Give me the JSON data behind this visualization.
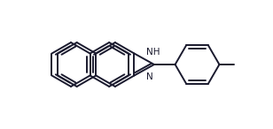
{
  "background": "#ffffff",
  "bond_color": "#1a1a2e",
  "text_color": "#1a1a2e",
  "line_width": 1.4,
  "font_size": 7.5,
  "xlim": [
    -0.8,
    10.2
  ],
  "ylim": [
    0.0,
    5.8
  ]
}
